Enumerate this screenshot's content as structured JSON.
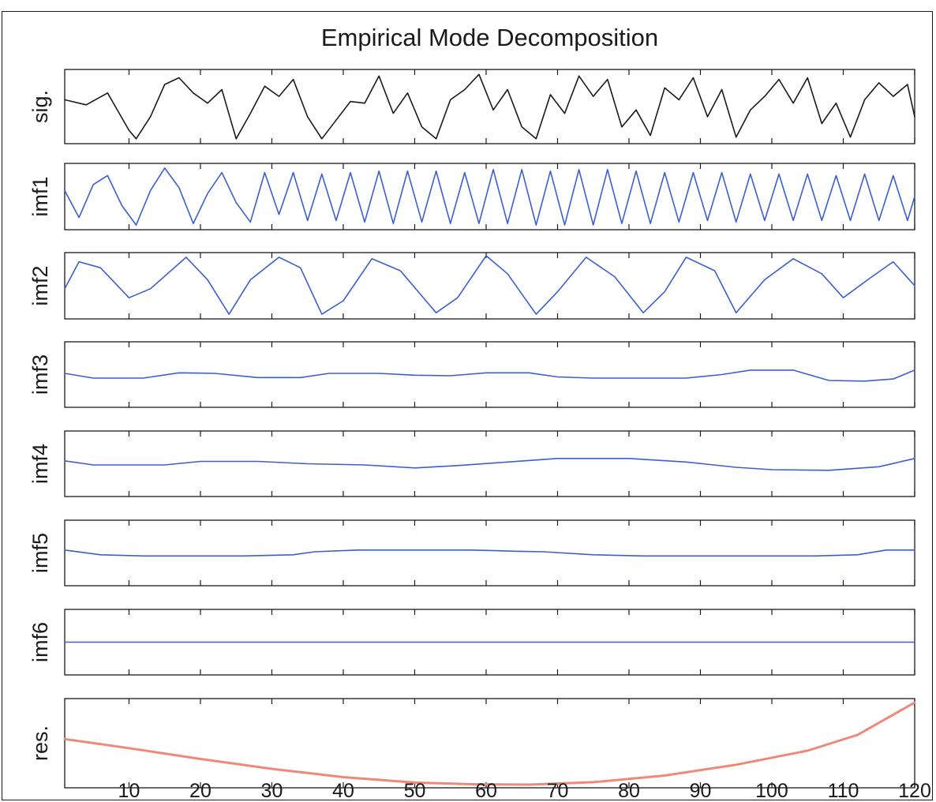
{
  "chart_data": {
    "type": "line",
    "title": "Empirical Mode Decomposition",
    "xlabel": "",
    "ylabel": "",
    "xlim": [
      1,
      120
    ],
    "xticks": [
      10,
      20,
      30,
      40,
      50,
      60,
      70,
      80,
      90,
      100,
      110,
      120
    ],
    "grid": false,
    "colors": {
      "signal": "#1a1a1a",
      "imf": "#3a5fd0",
      "residual": "#f08878"
    },
    "panels": [
      {
        "name": "sig.",
        "color": "#1a1a1a",
        "ylim": [
          -1,
          1
        ],
        "x": [
          1,
          4,
          7,
          10,
          11,
          13,
          15,
          17,
          19,
          21,
          23,
          25,
          27,
          29,
          31,
          33,
          35,
          37,
          39,
          41,
          43,
          45,
          47,
          49,
          51,
          53,
          55,
          57,
          59,
          61,
          63,
          65,
          67,
          69,
          71,
          73,
          75,
          77,
          79,
          81,
          83,
          85,
          87,
          89,
          91,
          93,
          95,
          97,
          99,
          101,
          103,
          105,
          107,
          109,
          111,
          113,
          115,
          117,
          119,
          120
        ],
        "y": [
          0.2,
          0.05,
          0.4,
          -0.7,
          -0.95,
          -0.3,
          0.65,
          0.85,
          0.4,
          0.1,
          0.5,
          -0.95,
          -0.2,
          0.6,
          0.3,
          0.8,
          -0.3,
          -0.95,
          -0.4,
          0.15,
          0.1,
          0.9,
          -0.2,
          0.4,
          -0.6,
          -0.95,
          0.2,
          0.5,
          0.95,
          -0.1,
          0.5,
          -0.6,
          -0.95,
          0.35,
          -0.2,
          0.9,
          0.3,
          0.8,
          -0.6,
          -0.1,
          -0.85,
          0.55,
          0.2,
          0.85,
          -0.3,
          0.5,
          -0.9,
          -0.1,
          0.3,
          0.8,
          0.1,
          0.85,
          -0.5,
          0.1,
          -0.9,
          0.2,
          0.7,
          0.3,
          0.65,
          -0.3
        ]
      },
      {
        "name": "imf1",
        "color": "#3a5fd0",
        "ylim": [
          -1,
          1
        ],
        "x": [
          1,
          3,
          5,
          7,
          9,
          11,
          13,
          15,
          17,
          19,
          21,
          23,
          25,
          27,
          29,
          31,
          33,
          35,
          37,
          39,
          41,
          43,
          45,
          47,
          49,
          51,
          53,
          55,
          57,
          59,
          61,
          63,
          65,
          67,
          69,
          71,
          73,
          75,
          77,
          79,
          81,
          83,
          85,
          87,
          89,
          91,
          93,
          95,
          97,
          99,
          101,
          103,
          105,
          107,
          109,
          111,
          113,
          115,
          117,
          119,
          120
        ],
        "y": [
          0.2,
          -0.7,
          0.4,
          0.7,
          -0.3,
          -0.95,
          0.2,
          0.95,
          0.3,
          -0.9,
          0.1,
          0.8,
          -0.2,
          -0.85,
          0.8,
          -0.6,
          0.8,
          -0.8,
          0.75,
          -0.8,
          0.8,
          -0.85,
          0.85,
          -0.9,
          0.85,
          -0.85,
          0.85,
          -0.9,
          0.8,
          -0.9,
          0.9,
          -0.9,
          0.9,
          -0.95,
          0.85,
          -0.95,
          0.9,
          -0.95,
          0.9,
          -0.9,
          0.85,
          -0.9,
          0.8,
          -0.85,
          0.8,
          -0.8,
          0.8,
          -0.85,
          0.75,
          -0.8,
          0.75,
          -0.8,
          0.75,
          -0.8,
          0.7,
          -0.8,
          0.75,
          -0.8,
          0.7,
          -0.8,
          0.0
        ]
      },
      {
        "name": "imf2",
        "color": "#3a5fd0",
        "ylim": [
          -1,
          1
        ],
        "x": [
          1,
          3,
          6,
          10,
          13,
          18,
          21,
          24,
          27,
          31,
          34,
          37,
          40,
          44,
          48,
          53,
          56,
          60,
          63,
          67,
          70,
          74,
          78,
          82,
          85,
          88,
          92,
          95,
          99,
          103,
          107,
          110,
          114,
          117,
          120
        ],
        "y": [
          -0.1,
          0.8,
          0.6,
          -0.4,
          -0.1,
          0.95,
          0.2,
          -0.95,
          0.2,
          0.95,
          0.6,
          -0.95,
          -0.5,
          0.9,
          0.5,
          -0.9,
          -0.4,
          1.0,
          0.4,
          -0.95,
          -0.2,
          0.95,
          0.3,
          -0.9,
          -0.2,
          0.95,
          0.5,
          -0.9,
          0.2,
          0.9,
          0.4,
          -0.4,
          0.3,
          0.8,
          0.0
        ]
      },
      {
        "name": "imf3",
        "color": "#3a5fd0",
        "ylim": [
          -1,
          1
        ],
        "x": [
          1,
          5,
          12,
          17,
          22,
          28,
          34,
          38,
          45,
          50,
          55,
          60,
          66,
          70,
          75,
          82,
          88,
          93,
          97,
          103,
          108,
          113,
          117,
          120
        ],
        "y": [
          0.04,
          -0.12,
          -0.12,
          0.06,
          0.04,
          -0.1,
          -0.1,
          0.04,
          0.04,
          -0.02,
          -0.04,
          0.06,
          0.06,
          -0.08,
          -0.12,
          -0.12,
          -0.12,
          0.0,
          0.15,
          0.15,
          -0.2,
          -0.22,
          -0.15,
          0.15
        ]
      },
      {
        "name": "imf4",
        "color": "#3a5fd0",
        "ylim": [
          -1,
          1
        ],
        "x": [
          1,
          5,
          15,
          20,
          28,
          35,
          43,
          50,
          56,
          63,
          70,
          80,
          88,
          95,
          100,
          108,
          115,
          120
        ],
        "y": [
          0.1,
          -0.04,
          -0.04,
          0.08,
          0.08,
          0.0,
          -0.04,
          -0.14,
          -0.06,
          0.06,
          0.18,
          0.18,
          0.06,
          -0.12,
          -0.2,
          -0.22,
          -0.1,
          0.18
        ]
      },
      {
        "name": "imf5",
        "color": "#3a5fd0",
        "ylim": [
          -1,
          1
        ],
        "x": [
          1,
          6,
          12,
          20,
          26,
          33,
          36,
          42,
          50,
          58,
          64,
          68,
          75,
          82,
          88,
          95,
          100,
          106,
          112,
          116,
          120
        ],
        "y": [
          0.1,
          -0.06,
          -0.1,
          -0.1,
          -0.1,
          -0.06,
          0.04,
          0.1,
          0.1,
          0.1,
          0.06,
          0.04,
          -0.06,
          -0.1,
          -0.1,
          -0.1,
          -0.1,
          -0.1,
          -0.06,
          0.1,
          0.1
        ]
      },
      {
        "name": "imf6",
        "color": "#3a5fd0",
        "ylim": [
          -1,
          1
        ],
        "x": [
          1,
          120
        ],
        "y": [
          0.0,
          0.0
        ]
      },
      {
        "name": "res.",
        "color": "#f08878",
        "ylim": [
          -1,
          1
        ],
        "x": [
          1,
          10,
          20,
          30,
          40,
          50,
          58,
          66,
          75,
          85,
          95,
          105,
          112,
          120
        ],
        "y": [
          0.1,
          -0.12,
          -0.38,
          -0.62,
          -0.82,
          -0.95,
          -0.99,
          -1.0,
          -0.94,
          -0.78,
          -0.52,
          -0.18,
          0.2,
          0.98
        ]
      }
    ]
  }
}
